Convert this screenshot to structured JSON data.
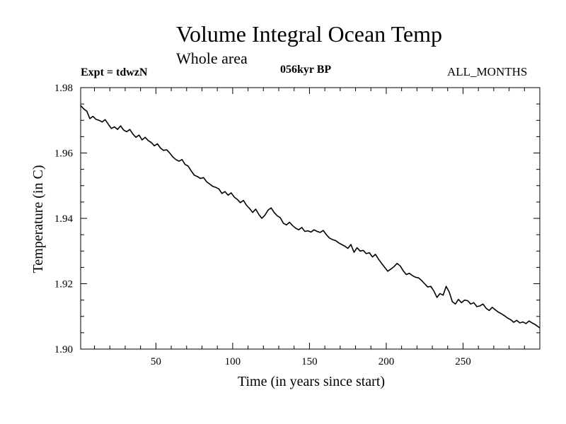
{
  "header": {
    "title": "Volume Integral Ocean Temp",
    "subtitle": "Whole area",
    "experiment": "Expt = tdwzN",
    "period": "056kyr BP",
    "months": "ALL_MONTHS"
  },
  "chart_data": {
    "type": "line",
    "title": "Volume Integral Ocean Temp",
    "subtitle": "Whole area",
    "xlabel": "Time (in years since start)",
    "ylabel": "Temperature (in C)",
    "xlim": [
      1,
      300
    ],
    "ylim": [
      1.9,
      1.98
    ],
    "xticks": [
      50,
      100,
      150,
      200,
      250
    ],
    "xtick_labels": [
      "50",
      "100",
      "150",
      "200",
      "250"
    ],
    "yticks": [
      1.9,
      1.92,
      1.94,
      1.96,
      1.98
    ],
    "ytick_labels": [
      "1.90",
      "1.92",
      "1.94",
      "1.96",
      "1.98"
    ],
    "grid": false,
    "series": [
      {
        "color": "#000000",
        "x": [
          1,
          3,
          5,
          7,
          9,
          11,
          13,
          15,
          17,
          19,
          21,
          23,
          25,
          27,
          29,
          31,
          33,
          35,
          37,
          39,
          41,
          43,
          45,
          47,
          49,
          51,
          53,
          55,
          57,
          59,
          61,
          63,
          65,
          67,
          69,
          71,
          73,
          75,
          77,
          79,
          81,
          83,
          85,
          87,
          89,
          91,
          93,
          95,
          97,
          99,
          101,
          103,
          105,
          107,
          109,
          111,
          113,
          115,
          117,
          119,
          121,
          123,
          125,
          127,
          129,
          131,
          133,
          135,
          137,
          139,
          141,
          143,
          145,
          147,
          149,
          151,
          153,
          155,
          157,
          159,
          161,
          163,
          165,
          167,
          169,
          171,
          173,
          175,
          177,
          179,
          181,
          183,
          185,
          187,
          189,
          191,
          193,
          195,
          197,
          199,
          201,
          203,
          205,
          207,
          209,
          211,
          213,
          215,
          217,
          219,
          221,
          223,
          225,
          227,
          229,
          231,
          233,
          235,
          237,
          239,
          241,
          243,
          245,
          247,
          249,
          251,
          253,
          255,
          257,
          259,
          261,
          263,
          265,
          267,
          269,
          271,
          273,
          275,
          277,
          279,
          281,
          283,
          285,
          287,
          289,
          291,
          293,
          295,
          297,
          299,
          300
        ],
        "values": [
          1.9745,
          1.9735,
          1.9728,
          1.9705,
          1.9712,
          1.9703,
          1.97,
          1.9695,
          1.9702,
          1.9688,
          1.9675,
          1.968,
          1.9672,
          1.9683,
          1.967,
          1.9665,
          1.9672,
          1.9658,
          1.9648,
          1.9655,
          1.964,
          1.9648,
          1.9638,
          1.9632,
          1.9622,
          1.9628,
          1.9615,
          1.9608,
          1.961,
          1.96,
          1.9588,
          1.958,
          1.9575,
          1.958,
          1.9565,
          1.956,
          1.9545,
          1.9532,
          1.9528,
          1.9522,
          1.9525,
          1.9512,
          1.9505,
          1.9498,
          1.9495,
          1.949,
          1.9476,
          1.9482,
          1.9471,
          1.9478,
          1.9465,
          1.9458,
          1.9448,
          1.9455,
          1.944,
          1.943,
          1.9418,
          1.9428,
          1.9412,
          1.94,
          1.941,
          1.9425,
          1.9432,
          1.9418,
          1.9408,
          1.9402,
          1.9385,
          1.938,
          1.9388,
          1.9378,
          1.937,
          1.9365,
          1.9372,
          1.936,
          1.9362,
          1.9358,
          1.9365,
          1.936,
          1.9357,
          1.9363,
          1.935,
          1.934,
          1.9335,
          1.9332,
          1.9325,
          1.932,
          1.9315,
          1.9308,
          1.932,
          1.9296,
          1.931,
          1.93,
          1.9302,
          1.9292,
          1.9295,
          1.9282,
          1.929,
          1.9275,
          1.9262,
          1.925,
          1.9238,
          1.9245,
          1.9252,
          1.9262,
          1.9255,
          1.924,
          1.9228,
          1.9232,
          1.9225,
          1.922,
          1.9218,
          1.921,
          1.92,
          1.919,
          1.9192,
          1.9178,
          1.9158,
          1.917,
          1.9165,
          1.9192,
          1.9175,
          1.9145,
          1.9138,
          1.9152,
          1.9142,
          1.915,
          1.9148,
          1.9138,
          1.9142,
          1.913,
          1.9132,
          1.9138,
          1.9125,
          1.9118,
          1.9128,
          1.912,
          1.9113,
          1.9108,
          1.9102,
          1.9095,
          1.909,
          1.9082,
          1.9088,
          1.908,
          1.9083,
          1.9078,
          1.9086,
          1.908,
          1.9075,
          1.9068,
          1.9065
        ]
      }
    ]
  }
}
